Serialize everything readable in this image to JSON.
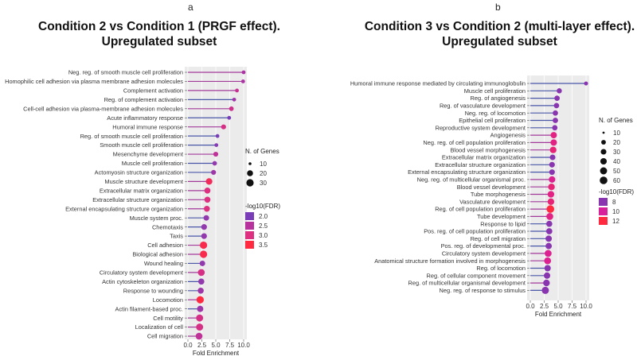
{
  "chart_data": [
    {
      "type": "lollipop",
      "panel_letter": "a",
      "title": "Condition 2 vs Condition 1 (PRGF effect).",
      "subtitle": "Upregulated subset",
      "xlabel": "Fold Enrichment",
      "xlim": [
        0,
        10
      ],
      "xticks": [
        "0.0",
        "2.5",
        "5.0",
        "7.5",
        "10.0"
      ],
      "size_legend": {
        "title": "N. of Genes",
        "values": [
          "10",
          "20",
          "30"
        ]
      },
      "color_legend": {
        "title": "-log10(FDR)",
        "values": [
          "2.0",
          "2.5",
          "3.0",
          "3.5"
        ],
        "colors": [
          "#7a3db8",
          "#b8329e",
          "#dd3080",
          "#ff2a40"
        ]
      },
      "terms": [
        {
          "label": "Neg. reg. of smooth muscle cell proliferation",
          "fe": 10.0,
          "fdr": 2.4,
          "genes": 8
        },
        {
          "label": "Homophilic cell adhesion via plasma membrane adhesion molecules",
          "fe": 9.9,
          "fdr": 2.4,
          "genes": 9
        },
        {
          "label": "Complement activation",
          "fe": 8.8,
          "fdr": 2.7,
          "genes": 9
        },
        {
          "label": "Reg. of complement activation",
          "fe": 8.3,
          "fdr": 2.3,
          "genes": 8
        },
        {
          "label": "Cell-cell adhesion via plasma-membrane adhesion molecules",
          "fe": 7.8,
          "fdr": 2.8,
          "genes": 11
        },
        {
          "label": "Acute inflammatory response",
          "fe": 7.4,
          "fdr": 2.0,
          "genes": 10
        },
        {
          "label": "Humoral immune response",
          "fe": 6.4,
          "fdr": 2.9,
          "genes": 12
        },
        {
          "label": "Reg. of smooth muscle cell proliferation",
          "fe": 5.3,
          "fdr": 2.0,
          "genes": 10
        },
        {
          "label": "Smooth muscle cell proliferation",
          "fe": 5.1,
          "fdr": 2.1,
          "genes": 10
        },
        {
          "label": "Mesenchyme development",
          "fe": 5.0,
          "fdr": 2.6,
          "genes": 12
        },
        {
          "label": "Muscle cell proliferation",
          "fe": 4.8,
          "fdr": 2.2,
          "genes": 11
        },
        {
          "label": "Actomyosin structure organization",
          "fe": 4.6,
          "fdr": 2.3,
          "genes": 12
        },
        {
          "label": "Muscle structure development",
          "fe": 3.8,
          "fdr": 3.3,
          "genes": 22
        },
        {
          "label": "Extracellular matrix organization",
          "fe": 3.5,
          "fdr": 3.0,
          "genes": 18
        },
        {
          "label": "Extracellular structure organization",
          "fe": 3.5,
          "fdr": 3.0,
          "genes": 18
        },
        {
          "label": "External encapsulating structure organization",
          "fe": 3.4,
          "fdr": 3.0,
          "genes": 18
        },
        {
          "label": "Muscle system proc.",
          "fe": 3.3,
          "fdr": 2.2,
          "genes": 15
        },
        {
          "label": "Chemotaxis",
          "fe": 2.9,
          "fdr": 2.2,
          "genes": 16
        },
        {
          "label": "Taxis",
          "fe": 2.9,
          "fdr": 2.2,
          "genes": 16
        },
        {
          "label": "Cell adhesion",
          "fe": 2.8,
          "fdr": 3.4,
          "genes": 30
        },
        {
          "label": "Biological adhesion",
          "fe": 2.8,
          "fdr": 3.4,
          "genes": 30
        },
        {
          "label": "Wound healing",
          "fe": 2.6,
          "fdr": 2.2,
          "genes": 15
        },
        {
          "label": "Circulatory system development",
          "fe": 2.4,
          "fdr": 2.9,
          "genes": 25
        },
        {
          "label": "Actin cytoskeleton organization",
          "fe": 2.4,
          "fdr": 2.2,
          "genes": 18
        },
        {
          "label": "Response to wounding",
          "fe": 2.3,
          "fdr": 2.3,
          "genes": 18
        },
        {
          "label": "Locomotion",
          "fe": 2.2,
          "fdr": 3.5,
          "genes": 32
        },
        {
          "label": "Actin filament-based proc.",
          "fe": 2.2,
          "fdr": 2.3,
          "genes": 20
        },
        {
          "label": "Cell motility",
          "fe": 2.1,
          "fdr": 2.9,
          "genes": 27
        },
        {
          "label": "Localization of cell",
          "fe": 2.1,
          "fdr": 2.9,
          "genes": 27
        },
        {
          "label": "Cell migration",
          "fe": 2.0,
          "fdr": 2.6,
          "genes": 25
        }
      ]
    },
    {
      "type": "lollipop",
      "panel_letter": "b",
      "title": "Condition 3 vs Condition 2 (multi-layer effect).",
      "subtitle": "Upregulated subset",
      "xlabel": "Fold Enrichment",
      "xlim": [
        0,
        10
      ],
      "xticks": [
        "0.0",
        "2.5",
        "5.0",
        "7.5",
        "10.0"
      ],
      "size_legend": {
        "title": "N. of Genes",
        "values": [
          "10",
          "20",
          "30",
          "40",
          "50",
          "60"
        ]
      },
      "color_legend": {
        "title": "-log10(FDR)",
        "values": [
          "8",
          "10",
          "12"
        ],
        "colors": [
          "#8a35b0",
          "#d8209a",
          "#ff2a40"
        ]
      },
      "terms": [
        {
          "label": "Humoral immune response mediated by circulating immunoglobulin",
          "fe": 10.0,
          "fdr": 6.8,
          "genes": 12
        },
        {
          "label": "Muscle cell proliferation",
          "fe": 5.2,
          "fdr": 7.0,
          "genes": 20
        },
        {
          "label": "Reg. of angiogenesis",
          "fe": 4.8,
          "fdr": 7.0,
          "genes": 22
        },
        {
          "label": "Reg. of vasculature development",
          "fe": 4.7,
          "fdr": 7.0,
          "genes": 22
        },
        {
          "label": "Neg. reg. of locomotion",
          "fe": 4.5,
          "fdr": 7.0,
          "genes": 22
        },
        {
          "label": "Epithelial cell proliferation",
          "fe": 4.5,
          "fdr": 7.0,
          "genes": 23
        },
        {
          "label": "Reproductive system development",
          "fe": 4.4,
          "fdr": 7.0,
          "genes": 22
        },
        {
          "label": "Angiogenesis",
          "fe": 4.2,
          "fdr": 10.5,
          "genes": 35
        },
        {
          "label": "Neg. reg. of cell population proliferation",
          "fe": 4.2,
          "fdr": 10.5,
          "genes": 36
        },
        {
          "label": "Blood vessel morphogenesis",
          "fe": 4.1,
          "fdr": 10.8,
          "genes": 38
        },
        {
          "label": "Extracellular matrix organization",
          "fe": 4.0,
          "fdr": 7.5,
          "genes": 25
        },
        {
          "label": "Extracellular structure organization",
          "fe": 3.9,
          "fdr": 7.5,
          "genes": 25
        },
        {
          "label": "External encapsulating structure organization",
          "fe": 3.9,
          "fdr": 7.5,
          "genes": 25
        },
        {
          "label": "Neg. reg. of multicellular organismal proc.",
          "fe": 3.9,
          "fdr": 10.2,
          "genes": 38
        },
        {
          "label": "Blood vessel development",
          "fe": 3.8,
          "fdr": 10.8,
          "genes": 40
        },
        {
          "label": "Tube morphogenesis",
          "fe": 3.7,
          "fdr": 10.5,
          "genes": 40
        },
        {
          "label": "Vasculature development",
          "fe": 3.7,
          "fdr": 10.8,
          "genes": 40
        },
        {
          "label": "Reg. of cell population proliferation",
          "fe": 3.6,
          "fdr": 13.0,
          "genes": 60
        },
        {
          "label": "Tube development",
          "fe": 3.5,
          "fdr": 10.5,
          "genes": 45
        },
        {
          "label": "Response to lipid",
          "fe": 3.4,
          "fdr": 7.5,
          "genes": 32
        },
        {
          "label": "Pos. reg. of cell population proliferation",
          "fe": 3.4,
          "fdr": 7.5,
          "genes": 32
        },
        {
          "label": "Reg. of cell migration",
          "fe": 3.3,
          "fdr": 7.5,
          "genes": 34
        },
        {
          "label": "Pos. reg. of developmental proc.",
          "fe": 3.3,
          "fdr": 7.5,
          "genes": 34
        },
        {
          "label": "Circulatory system development",
          "fe": 3.2,
          "fdr": 10.2,
          "genes": 45
        },
        {
          "label": "Anatomical structure formation involved in morphogenesis",
          "fe": 3.1,
          "fdr": 10.2,
          "genes": 45
        },
        {
          "label": "Reg. of locomotion",
          "fe": 3.1,
          "fdr": 7.5,
          "genes": 36
        },
        {
          "label": "Reg. of cellular component movement",
          "fe": 3.0,
          "fdr": 7.5,
          "genes": 36
        },
        {
          "label": "Reg. of multicellular organismal development",
          "fe": 2.9,
          "fdr": 7.8,
          "genes": 40
        },
        {
          "label": "Neg. reg. of response to stimulus",
          "fe": 2.7,
          "fdr": 7.3,
          "genes": 50
        }
      ]
    }
  ]
}
